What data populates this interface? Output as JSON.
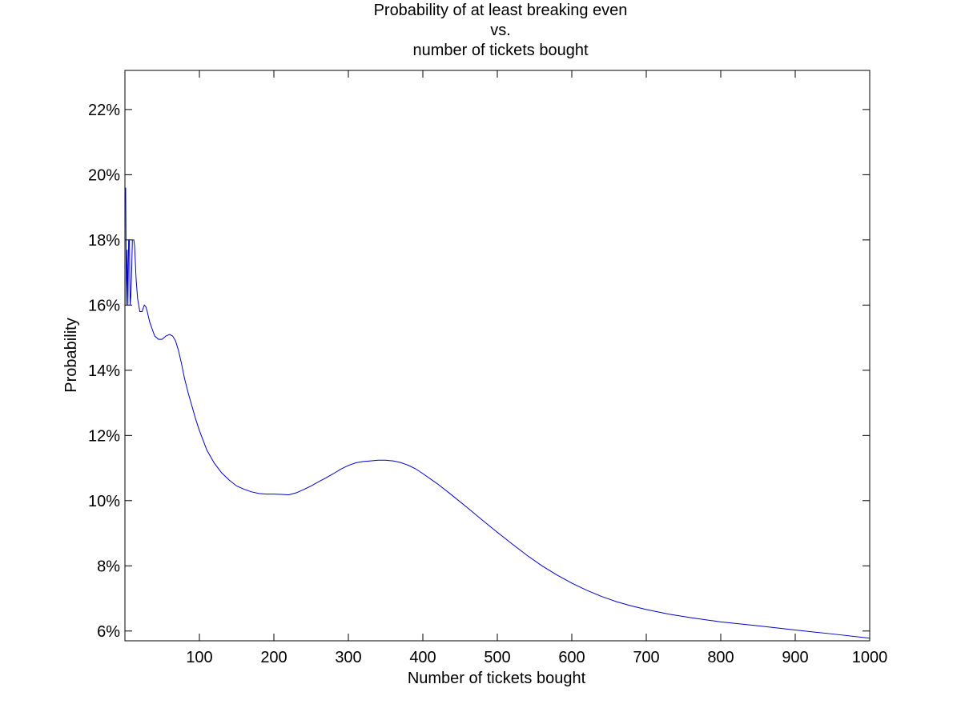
{
  "chart_data": {
    "type": "line",
    "title_lines": [
      "Probability of at least breaking even",
      "vs.",
      "number of tickets bought"
    ],
    "xlabel": "Number of tickets bought",
    "ylabel": "Probability",
    "xlim": [
      0,
      1000
    ],
    "ylim": [
      0.057,
      0.232
    ],
    "grid": false,
    "x_ticks": [
      {
        "value": 100,
        "label": "100"
      },
      {
        "value": 200,
        "label": "200"
      },
      {
        "value": 300,
        "label": "300"
      },
      {
        "value": 400,
        "label": "400"
      },
      {
        "value": 500,
        "label": "500"
      },
      {
        "value": 600,
        "label": "600"
      },
      {
        "value": 700,
        "label": "700"
      },
      {
        "value": 800,
        "label": "800"
      },
      {
        "value": 900,
        "label": "900"
      },
      {
        "value": 1000,
        "label": "1000"
      }
    ],
    "y_ticks": [
      {
        "value": 0.06,
        "label": "6%"
      },
      {
        "value": 0.08,
        "label": "8%"
      },
      {
        "value": 0.1,
        "label": "10%"
      },
      {
        "value": 0.12,
        "label": "12%"
      },
      {
        "value": 0.14,
        "label": "14%"
      },
      {
        "value": 0.16,
        "label": "16%"
      },
      {
        "value": 0.18,
        "label": "18%"
      },
      {
        "value": 0.2,
        "label": "20%"
      },
      {
        "value": 0.22,
        "label": "22%"
      }
    ],
    "series": [
      {
        "color": "#0000cc",
        "x": [
          1,
          2,
          3,
          4,
          5,
          6,
          7,
          8,
          9,
          10,
          11,
          12,
          13,
          15,
          17,
          20,
          23,
          26,
          28,
          30,
          33,
          36,
          40,
          45,
          50,
          55,
          60,
          64,
          68,
          72,
          76,
          80,
          85,
          90,
          95,
          100,
          110,
          120,
          130,
          140,
          150,
          160,
          170,
          180,
          190,
          200,
          210,
          220,
          230,
          240,
          250,
          260,
          270,
          280,
          290,
          300,
          310,
          320,
          330,
          340,
          350,
          355,
          360,
          370,
          380,
          390,
          400,
          420,
          440,
          460,
          480,
          500,
          520,
          540,
          560,
          580,
          600,
          620,
          640,
          660,
          680,
          700,
          730,
          760,
          800,
          850,
          900,
          950,
          1000
        ],
        "y": [
          0.196,
          0.16,
          0.177,
          0.16,
          0.18,
          0.18,
          0.16,
          0.163,
          0.17,
          0.18,
          0.18,
          0.18,
          0.178,
          0.168,
          0.162,
          0.158,
          0.158,
          0.16,
          0.1595,
          0.158,
          0.155,
          0.153,
          0.1505,
          0.1495,
          0.1495,
          0.1505,
          0.151,
          0.1505,
          0.149,
          0.146,
          0.142,
          0.1375,
          0.133,
          0.129,
          0.125,
          0.1215,
          0.1155,
          0.1115,
          0.1085,
          0.1063,
          0.1045,
          0.1035,
          0.1027,
          0.1022,
          0.102,
          0.102,
          0.1019,
          0.1018,
          0.1024,
          0.1034,
          0.1045,
          0.1058,
          0.107,
          0.1083,
          0.1097,
          0.1108,
          0.1116,
          0.112,
          0.1122,
          0.1124,
          0.1124,
          0.1123,
          0.1122,
          0.1117,
          0.1109,
          0.1098,
          0.1083,
          0.1051,
          0.1015,
          0.0978,
          0.094,
          0.0903,
          0.0867,
          0.0832,
          0.08,
          0.0772,
          0.0747,
          0.0725,
          0.0706,
          0.069,
          0.0677,
          0.0666,
          0.0652,
          0.0641,
          0.0628,
          0.0616,
          0.0603,
          0.0591,
          0.0578
        ]
      }
    ]
  }
}
